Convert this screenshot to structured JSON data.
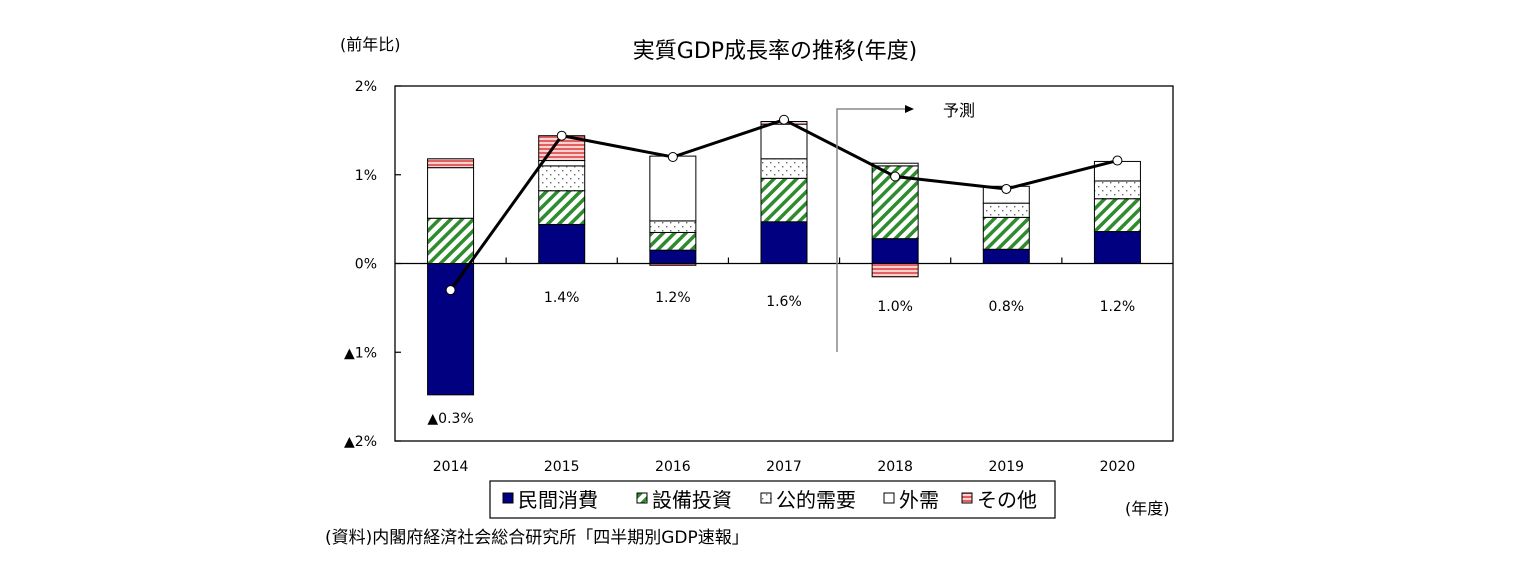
{
  "chart_data": {
    "type": "bar",
    "subtype": "stacked-bar-with-line",
    "title": "実質GDP成長率の推移(年度)",
    "ylabel": "(前年比)",
    "xlabel": "(年度)",
    "ylim": [
      -2,
      2
    ],
    "y_ticks": [
      2,
      1,
      0,
      -1,
      -2
    ],
    "y_tick_labels": [
      "2%",
      "1%",
      "0%",
      "▲1%",
      "▲2%"
    ],
    "categories": [
      "2014",
      "2015",
      "2016",
      "2017",
      "2018",
      "2019",
      "2020"
    ],
    "series": [
      {
        "name": "民間消費",
        "kind": "bar",
        "pattern": "solid",
        "color": "#000080",
        "values": [
          -1.48,
          0.44,
          0.15,
          0.47,
          0.28,
          0.16,
          0.36
        ]
      },
      {
        "name": "設備投資",
        "kind": "bar",
        "pattern": "diagonal",
        "color": "#2e8b2e",
        "values": [
          0.51,
          0.38,
          0.2,
          0.49,
          0.82,
          0.36,
          0.37
        ]
      },
      {
        "name": "公的需要",
        "kind": "bar",
        "pattern": "dots",
        "color": "#808080",
        "values": [
          0.0,
          0.28,
          0.13,
          0.22,
          0.0,
          0.16,
          0.2
        ]
      },
      {
        "name": "外需",
        "kind": "bar",
        "pattern": "white",
        "color": "#ffffff",
        "values": [
          0.57,
          0.06,
          0.73,
          0.39,
          0.03,
          0.19,
          0.22
        ]
      },
      {
        "name": "その他",
        "kind": "bar",
        "pattern": "horizontal",
        "color": "#e06060",
        "values": [
          0.1,
          0.28,
          -0.02,
          0.03,
          -0.15,
          0.0,
          0.0
        ]
      },
      {
        "name": "実質GDP成長率",
        "kind": "line",
        "color": "#000000",
        "values": [
          -0.3,
          1.44,
          1.2,
          1.62,
          0.98,
          0.84,
          1.16
        ]
      }
    ],
    "data_labels": [
      "▲0.3%",
      "1.4%",
      "1.2%",
      "1.6%",
      "1.0%",
      "0.8%",
      "1.2%"
    ],
    "annotations": [
      {
        "text": "予測",
        "note": "forecast from 2018 onward"
      }
    ],
    "legend": {
      "position": "bottom",
      "entries": [
        "民間消費",
        "設備投資",
        "公的需要",
        "外需",
        "その他"
      ]
    },
    "grid": false
  },
  "source": "(資料)内閣府経済社会総合研究所「四半期別GDP速報」"
}
